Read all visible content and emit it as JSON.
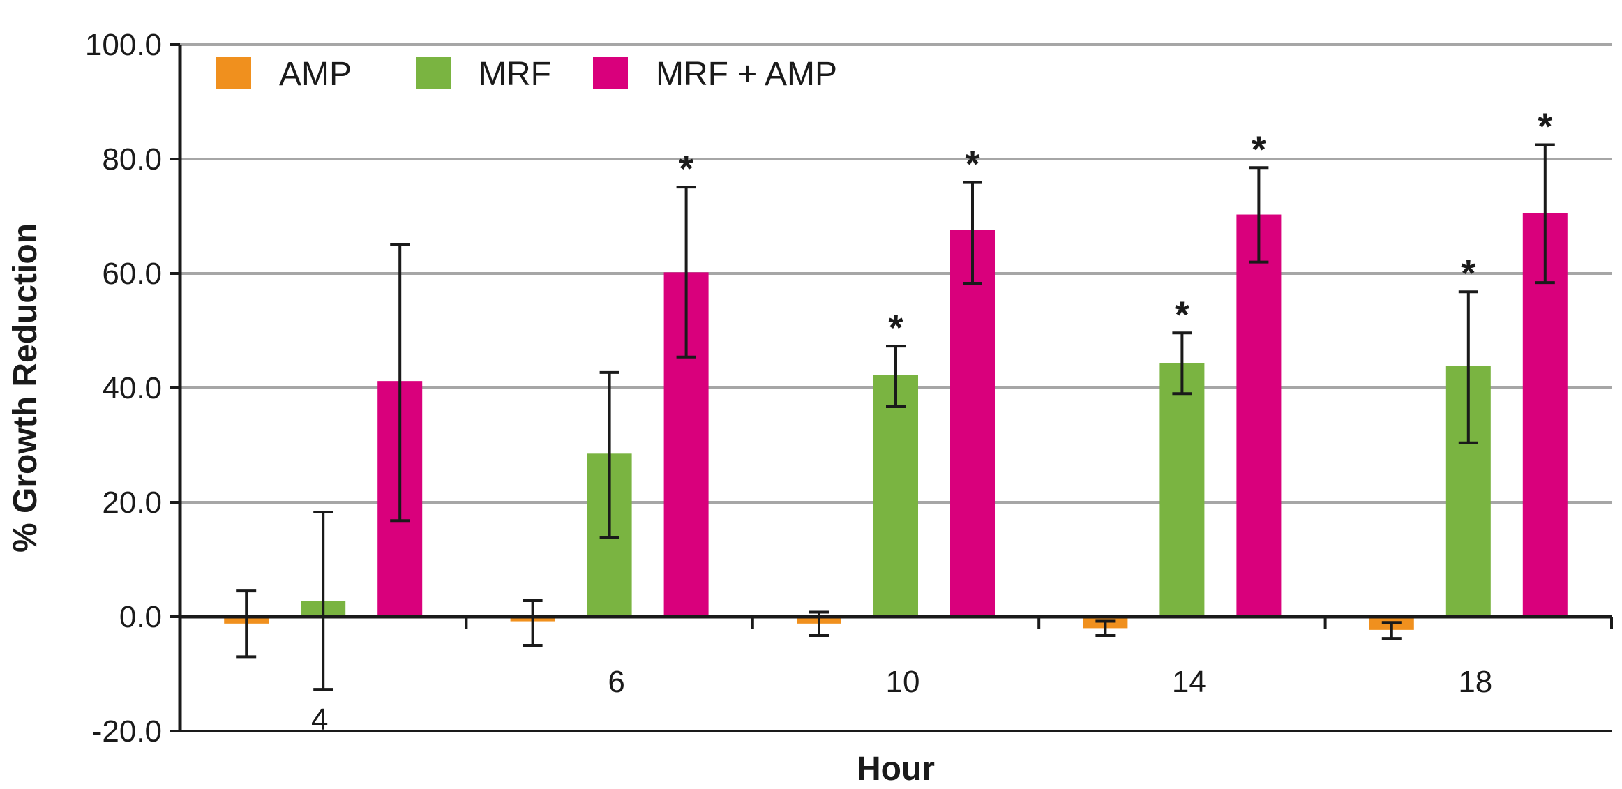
{
  "chart_data": {
    "type": "bar",
    "xlabel": "Hour",
    "ylabel": "% Growth Reduction",
    "ylim": [
      -20,
      100
    ],
    "yticks": [
      "-20.0",
      "0.0",
      "20.0",
      "40.0",
      "60.0",
      "80.0",
      "100.0"
    ],
    "ytick_values": [
      -20,
      0,
      20,
      40,
      60,
      80,
      100
    ],
    "categories": [
      "4",
      "6",
      "10",
      "14",
      "18"
    ],
    "grid": "horizontal",
    "legend_position": "top-left",
    "significance_marker": "*",
    "series": [
      {
        "name": "AMP",
        "color": "#F0901E",
        "values": [
          -1.2,
          -0.8,
          -1.2,
          -2.0,
          -2.3
        ],
        "error_low": [
          -7.0,
          -5.0,
          -3.3,
          -3.3,
          -3.8
        ],
        "error_high": [
          4.5,
          2.8,
          0.8,
          -0.8,
          -1.0
        ],
        "significant": [
          false,
          false,
          false,
          false,
          false
        ]
      },
      {
        "name": "MRF",
        "color": "#7AB441",
        "values": [
          2.8,
          28.5,
          42.3,
          44.3,
          43.8
        ],
        "error_low": [
          -12.7,
          13.9,
          36.7,
          39.0,
          30.4
        ],
        "error_high": [
          18.3,
          42.7,
          47.3,
          49.6,
          56.8
        ],
        "significant": [
          false,
          false,
          true,
          true,
          true
        ]
      },
      {
        "name": "MRF + AMP",
        "color": "#D9007C",
        "values": [
          41.2,
          60.2,
          67.6,
          70.3,
          70.5
        ],
        "error_low": [
          16.8,
          45.4,
          58.3,
          62.0,
          58.4
        ],
        "error_high": [
          65.1,
          75.1,
          75.9,
          78.5,
          82.5
        ],
        "significant": [
          false,
          true,
          true,
          true,
          true
        ]
      }
    ]
  }
}
